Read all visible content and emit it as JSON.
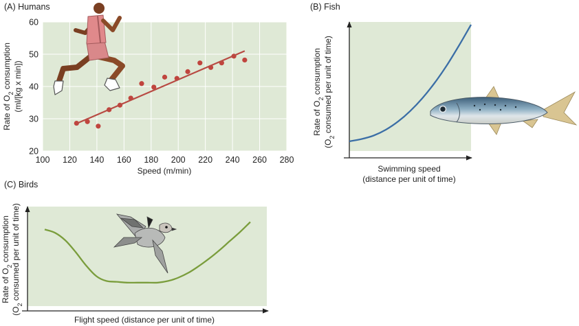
{
  "colors": {
    "plot_bg": "#dfe9d6",
    "humans_point": "#c0453e",
    "humans_line": "#b84a43",
    "fish_curve": "#3b6ea6",
    "birds_curve": "#7a9d3c",
    "grid": "#ffffff"
  },
  "chart_data": [
    {
      "type": "scatter",
      "title": "(A) Humans",
      "xlabel": "Speed (m/min)",
      "ylabel_main": "Rate of O",
      "ylabel_sub": "2",
      "ylabel_tail": " consumption",
      "ylabel_units": "(ml/[kg x min])",
      "xlim": [
        100,
        280
      ],
      "ylim": [
        20,
        60
      ],
      "xticks": [
        100,
        120,
        140,
        160,
        180,
        200,
        220,
        240,
        260,
        280
      ],
      "yticks": [
        20,
        30,
        40,
        50,
        60
      ],
      "grid": true,
      "points": [
        {
          "x": 125,
          "y": 28.6
        },
        {
          "x": 133,
          "y": 29.1
        },
        {
          "x": 141,
          "y": 27.7
        },
        {
          "x": 149,
          "y": 32.8
        },
        {
          "x": 157,
          "y": 34.2
        },
        {
          "x": 165,
          "y": 36.4
        },
        {
          "x": 173,
          "y": 40.9
        },
        {
          "x": 182,
          "y": 39.8
        },
        {
          "x": 190,
          "y": 42.9
        },
        {
          "x": 199,
          "y": 42.5
        },
        {
          "x": 207,
          "y": 44.6
        },
        {
          "x": 216,
          "y": 47.3
        },
        {
          "x": 224,
          "y": 45.9
        },
        {
          "x": 232,
          "y": 47.3
        },
        {
          "x": 241,
          "y": 49.4
        },
        {
          "x": 249,
          "y": 48.2
        }
      ],
      "fit_line": [
        {
          "x": 125,
          "y": 28.5
        },
        {
          "x": 249,
          "y": 51.0
        }
      ]
    },
    {
      "type": "line",
      "title": "(B) Fish",
      "xlabel_line1": "Swimming speed",
      "xlabel_line2": "(distance per unit of time)",
      "ylabel_line1_a": "Rate of O",
      "ylabel_line1_sub": "2",
      "ylabel_line1_b": " consumption",
      "ylabel_line2_a": "(O",
      "ylabel_line2_sub": "2",
      "ylabel_line2_b": " consumed per unit of time)",
      "xlim": [
        0,
        1
      ],
      "ylim": [
        0,
        1
      ],
      "series": [
        {
          "x": [
            0,
            0.1,
            0.2,
            0.3,
            0.4,
            0.5,
            0.6,
            0.7,
            0.8,
            0.9,
            1.0
          ],
          "y": [
            0.0,
            0.02,
            0.05,
            0.1,
            0.17,
            0.26,
            0.37,
            0.5,
            0.65,
            0.82,
            1.0
          ]
        }
      ]
    },
    {
      "type": "line",
      "title": "(C) Birds",
      "xlabel": "Flight speed (distance per unit of time)",
      "ylabel_line1_a": "Rate of O",
      "ylabel_line1_sub": "2",
      "ylabel_line1_b": " consumption",
      "ylabel_line2_a": "(O",
      "ylabel_line2_sub": "2",
      "ylabel_line2_b": " consumed per unit of time)",
      "xlim": [
        0,
        1
      ],
      "ylim": [
        0,
        1
      ],
      "series": [
        {
          "x": [
            0,
            0.05,
            0.1,
            0.15,
            0.2,
            0.25,
            0.3,
            0.35,
            0.4,
            0.45,
            0.5,
            0.55,
            0.6,
            0.65,
            0.7,
            0.75,
            0.8,
            0.85,
            0.9,
            0.95,
            1.0
          ],
          "y": [
            0.84,
            0.8,
            0.71,
            0.57,
            0.41,
            0.28,
            0.22,
            0.21,
            0.2,
            0.2,
            0.2,
            0.2,
            0.22,
            0.26,
            0.32,
            0.4,
            0.49,
            0.59,
            0.7,
            0.81,
            0.93
          ]
        }
      ]
    }
  ]
}
